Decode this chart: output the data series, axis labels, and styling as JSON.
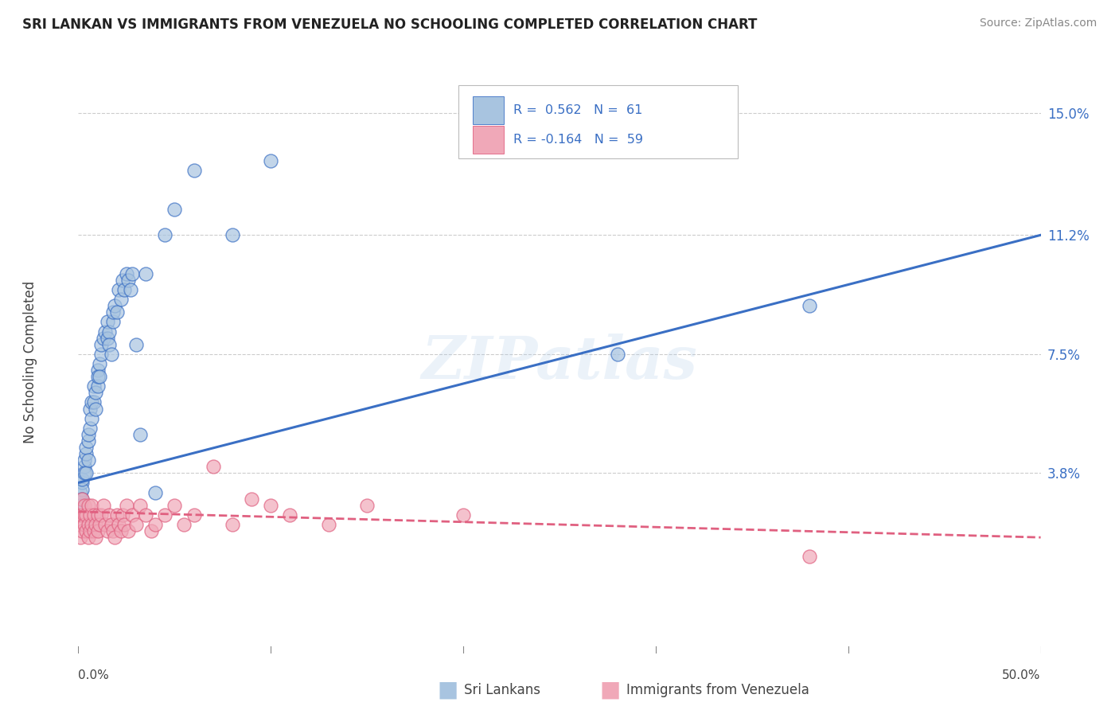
{
  "title": "SRI LANKAN VS IMMIGRANTS FROM VENEZUELA NO SCHOOLING COMPLETED CORRELATION CHART",
  "source": "Source: ZipAtlas.com",
  "ylabel": "No Schooling Completed",
  "ytick_labels": [
    "3.8%",
    "7.5%",
    "11.2%",
    "15.0%"
  ],
  "ytick_values": [
    0.038,
    0.075,
    0.112,
    0.15
  ],
  "xmin": 0.0,
  "xmax": 0.5,
  "ymin": -0.018,
  "ymax": 0.163,
  "blue_color": "#a8c4e0",
  "pink_color": "#f0a8b8",
  "blue_line_color": "#3a6fc4",
  "pink_line_color": "#e06080",
  "watermark": "ZIPatlas",
  "sri_lanka_x": [
    0.001,
    0.001,
    0.001,
    0.002,
    0.002,
    0.002,
    0.002,
    0.003,
    0.003,
    0.003,
    0.004,
    0.004,
    0.004,
    0.005,
    0.005,
    0.005,
    0.006,
    0.006,
    0.007,
    0.007,
    0.008,
    0.008,
    0.009,
    0.009,
    0.01,
    0.01,
    0.01,
    0.011,
    0.011,
    0.012,
    0.012,
    0.013,
    0.014,
    0.015,
    0.015,
    0.016,
    0.016,
    0.017,
    0.018,
    0.018,
    0.019,
    0.02,
    0.021,
    0.022,
    0.023,
    0.024,
    0.025,
    0.026,
    0.027,
    0.028,
    0.03,
    0.032,
    0.035,
    0.04,
    0.045,
    0.05,
    0.06,
    0.08,
    0.1,
    0.28,
    0.38
  ],
  "sri_lanka_y": [
    0.03,
    0.032,
    0.028,
    0.035,
    0.033,
    0.036,
    0.03,
    0.04,
    0.038,
    0.042,
    0.038,
    0.044,
    0.046,
    0.042,
    0.048,
    0.05,
    0.052,
    0.058,
    0.055,
    0.06,
    0.06,
    0.065,
    0.058,
    0.063,
    0.065,
    0.07,
    0.068,
    0.072,
    0.068,
    0.075,
    0.078,
    0.08,
    0.082,
    0.085,
    0.08,
    0.082,
    0.078,
    0.075,
    0.085,
    0.088,
    0.09,
    0.088,
    0.095,
    0.092,
    0.098,
    0.095,
    0.1,
    0.098,
    0.095,
    0.1,
    0.078,
    0.05,
    0.1,
    0.032,
    0.112,
    0.12,
    0.132,
    0.112,
    0.135,
    0.075,
    0.09
  ],
  "venezuela_x": [
    0.001,
    0.001,
    0.001,
    0.002,
    0.002,
    0.002,
    0.003,
    0.003,
    0.003,
    0.004,
    0.004,
    0.005,
    0.005,
    0.005,
    0.006,
    0.006,
    0.007,
    0.007,
    0.008,
    0.008,
    0.009,
    0.009,
    0.01,
    0.01,
    0.011,
    0.012,
    0.013,
    0.014,
    0.015,
    0.016,
    0.017,
    0.018,
    0.019,
    0.02,
    0.021,
    0.022,
    0.023,
    0.024,
    0.025,
    0.026,
    0.028,
    0.03,
    0.032,
    0.035,
    0.038,
    0.04,
    0.045,
    0.05,
    0.055,
    0.06,
    0.07,
    0.08,
    0.09,
    0.1,
    0.11,
    0.13,
    0.15,
    0.2,
    0.38
  ],
  "venezuela_y": [
    0.025,
    0.022,
    0.018,
    0.03,
    0.025,
    0.02,
    0.025,
    0.022,
    0.028,
    0.02,
    0.025,
    0.028,
    0.022,
    0.018,
    0.025,
    0.02,
    0.022,
    0.028,
    0.025,
    0.02,
    0.022,
    0.018,
    0.025,
    0.02,
    0.022,
    0.025,
    0.028,
    0.022,
    0.02,
    0.025,
    0.022,
    0.02,
    0.018,
    0.025,
    0.022,
    0.02,
    0.025,
    0.022,
    0.028,
    0.02,
    0.025,
    0.022,
    0.028,
    0.025,
    0.02,
    0.022,
    0.025,
    0.028,
    0.022,
    0.025,
    0.04,
    0.022,
    0.03,
    0.028,
    0.025,
    0.022,
    0.028,
    0.025,
    0.012
  ],
  "blue_line_x0": 0.0,
  "blue_line_x1": 0.5,
  "blue_line_y0": 0.035,
  "blue_line_y1": 0.112,
  "pink_line_x0": 0.0,
  "pink_line_x1": 0.5,
  "pink_line_y0": 0.026,
  "pink_line_y1": 0.018
}
